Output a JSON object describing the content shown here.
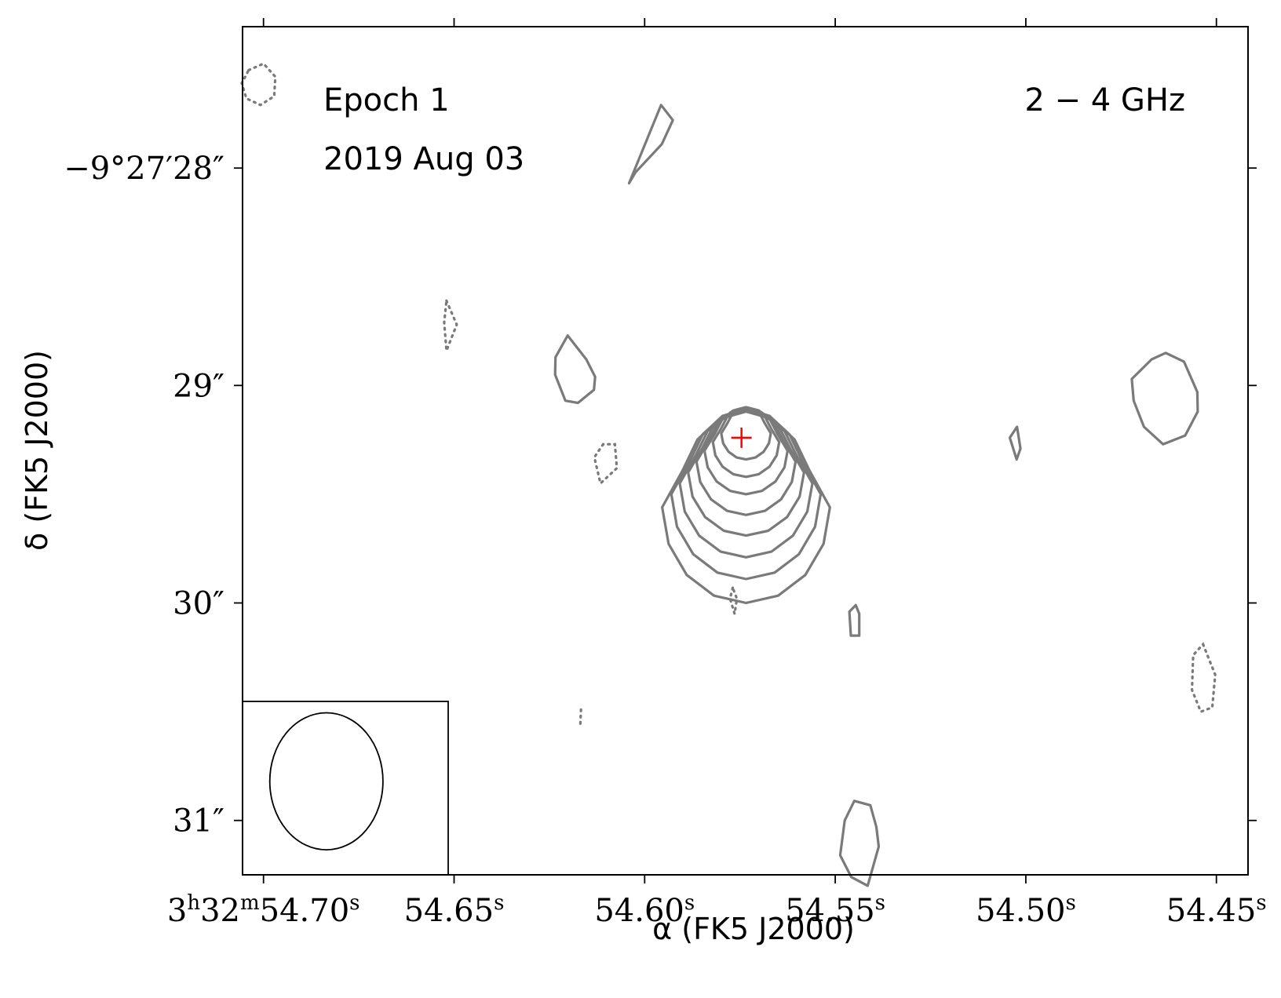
{
  "chart_data": {
    "type": "contour",
    "title": "",
    "annotations": {
      "epoch": "Epoch 1",
      "date": "2019 Aug 03",
      "band": "2 − 4 GHz"
    },
    "xlabel": "α (FK5 J2000)",
    "ylabel": "δ (FK5 J2000)",
    "x_ticks": [
      {
        "value": 54.7,
        "label": "3h32m54.70s"
      },
      {
        "value": 54.65,
        "label": "54.65s"
      },
      {
        "value": 54.6,
        "label": "54.60s"
      },
      {
        "value": 54.55,
        "label": "54.55s"
      },
      {
        "value": 54.5,
        "label": "54.50s"
      },
      {
        "value": 54.45,
        "label": "54.45s"
      }
    ],
    "y_ticks": [
      {
        "value": 28,
        "label": "−9°27′28″"
      },
      {
        "value": 29,
        "label": "29″"
      },
      {
        "value": 30,
        "label": "30″"
      },
      {
        "value": 31,
        "label": "31″"
      }
    ],
    "xlim": [
      54.7055,
      54.4417
    ],
    "ylim": [
      27.35,
      31.25
    ],
    "x_unit": "s of RA (3h32m)",
    "y_unit": "arcsec (−9°27′)",
    "source_marker": {
      "ra": 54.5746,
      "dec": 29.24,
      "color": "#ff0000"
    },
    "beam": {
      "ra": 54.6835,
      "dec": 30.82,
      "major_arcsec": 0.63,
      "minor_arcsec": 0.52
    },
    "main_source_contours": [
      {
        "ra": 54.5734,
        "dec": 29.56,
        "ra_radius": 0.022,
        "dec_radius": 0.44
      },
      {
        "ra": 54.5734,
        "dec": 29.5,
        "ra_radius": 0.0196,
        "dec_radius": 0.39
      },
      {
        "ra": 54.5734,
        "dec": 29.45,
        "ra_radius": 0.0174,
        "dec_radius": 0.34
      },
      {
        "ra": 54.5734,
        "dec": 29.4,
        "ra_radius": 0.0152,
        "dec_radius": 0.29
      },
      {
        "ra": 54.5734,
        "dec": 29.35,
        "ra_radius": 0.013,
        "dec_radius": 0.245
      },
      {
        "ra": 54.5734,
        "dec": 29.3,
        "ra_radius": 0.0109,
        "dec_radius": 0.2
      },
      {
        "ra": 54.5734,
        "dec": 29.26,
        "ra_radius": 0.0087,
        "dec_radius": 0.16
      },
      {
        "ra": 54.5734,
        "dec": 29.22,
        "ra_radius": 0.0065,
        "dec_radius": 0.12
      }
    ],
    "other_contours": [
      {
        "kind": "positive",
        "points": [
          [
            54.5957,
            27.71
          ],
          [
            54.5926,
            27.78
          ],
          [
            54.5955,
            27.89
          ],
          [
            54.6024,
            28.02
          ],
          [
            54.6041,
            28.07
          ]
        ]
      },
      {
        "kind": "positive",
        "points": [
          [
            54.6202,
            28.77
          ],
          [
            54.6234,
            28.87
          ],
          [
            54.6235,
            28.95
          ],
          [
            54.6208,
            29.07
          ],
          [
            54.6175,
            29.08
          ],
          [
            54.6133,
            29.02
          ],
          [
            54.613,
            28.96
          ],
          [
            54.6153,
            28.88
          ]
        ]
      },
      {
        "kind": "positive",
        "points": [
          [
            54.4585,
            28.89
          ],
          [
            54.4633,
            28.85
          ],
          [
            54.467,
            28.88
          ],
          [
            54.4722,
            28.97
          ],
          [
            54.4717,
            29.07
          ],
          [
            54.469,
            29.19
          ],
          [
            54.464,
            29.27
          ],
          [
            54.4582,
            29.23
          ],
          [
            54.4549,
            29.12
          ],
          [
            54.455,
            29.03
          ]
        ]
      },
      {
        "kind": "positive",
        "points": [
          [
            54.5023,
            29.19
          ],
          [
            54.5014,
            29.29
          ],
          [
            54.5024,
            29.34
          ],
          [
            54.5042,
            29.24
          ]
        ]
      },
      {
        "kind": "positive",
        "points": [
          [
            54.5446,
            30.01
          ],
          [
            54.5437,
            30.05
          ],
          [
            54.5437,
            30.15
          ],
          [
            54.5459,
            30.15
          ],
          [
            54.5463,
            30.04
          ]
        ]
      },
      {
        "kind": "positive",
        "points": [
          [
            54.5475,
            31.0
          ],
          [
            54.545,
            30.91
          ],
          [
            54.5408,
            30.93
          ],
          [
            54.5392,
            31.03
          ],
          [
            54.5386,
            31.12
          ],
          [
            54.5415,
            31.3
          ],
          [
            54.5458,
            31.26
          ],
          [
            54.5487,
            31.16
          ]
        ]
      },
      {
        "kind": "negative",
        "points": [
          [
            54.7039,
            27.55
          ],
          [
            54.7,
            27.52
          ],
          [
            54.6969,
            27.58
          ],
          [
            54.6972,
            27.67
          ],
          [
            54.7008,
            27.71
          ],
          [
            54.7045,
            27.68
          ],
          [
            54.7057,
            27.61
          ]
        ]
      },
      {
        "kind": "negative",
        "points": [
          [
            54.652,
            28.61
          ],
          [
            54.6493,
            28.72
          ],
          [
            54.652,
            28.84
          ],
          [
            54.6526,
            28.71
          ]
        ]
      },
      {
        "kind": "negative",
        "points": [
          [
            54.6109,
            29.27
          ],
          [
            54.6132,
            29.33
          ],
          [
            54.6116,
            29.45
          ],
          [
            54.6073,
            29.38
          ],
          [
            54.6078,
            29.27
          ]
        ]
      },
      {
        "kind": "negative",
        "points": [
          [
            54.5769,
            29.93
          ],
          [
            54.5776,
            29.98
          ],
          [
            54.5764,
            30.05
          ],
          [
            54.5758,
            29.98
          ]
        ]
      },
      {
        "kind": "negative",
        "points": [
          [
            54.4535,
            30.19
          ],
          [
            54.4503,
            30.33
          ],
          [
            54.4511,
            30.48
          ],
          [
            54.4541,
            30.5
          ],
          [
            54.4564,
            30.4
          ],
          [
            54.4561,
            30.24
          ]
        ]
      },
      {
        "kind": "negative",
        "points": [
          [
            54.6167,
            30.49
          ],
          [
            54.6169,
            30.57
          ]
        ]
      }
    ]
  }
}
